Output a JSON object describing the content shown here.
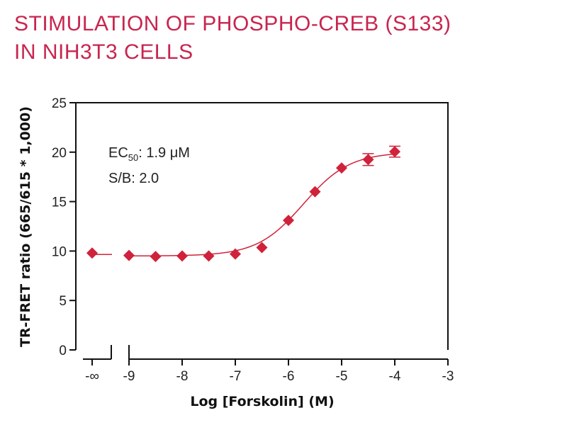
{
  "title_lines": [
    "STIMULATION OF PHOSPHO-CREB (S133)",
    "IN NIH3T3 CELLS"
  ],
  "colors": {
    "title": "#c8254f",
    "series": "#d0223a",
    "axis": "#111111"
  },
  "chart_data": {
    "type": "scatter",
    "title": "STIMULATION OF PHOSPHO-CREB (S133) IN NIH3T3 CELLS",
    "xlabel": "Log [Forskolin] (M)",
    "ylabel": "TR-FRET ratio (665/615 * 1,000)",
    "xlim": [
      -9,
      -3
    ],
    "ylim": [
      0,
      25
    ],
    "x_ticks": [
      {
        "value": "-inf",
        "label": "-∞"
      },
      {
        "value": -9,
        "label": "-9"
      },
      {
        "value": -8,
        "label": "-8"
      },
      {
        "value": -7,
        "label": "-7"
      },
      {
        "value": -6,
        "label": "-6"
      },
      {
        "value": -5,
        "label": "-5"
      },
      {
        "value": -4,
        "label": "-4"
      },
      {
        "value": -3,
        "label": "-3"
      }
    ],
    "y_ticks": [
      {
        "value": 0,
        "label": "0"
      },
      {
        "value": 5,
        "label": "5"
      },
      {
        "value": 10,
        "label": "10"
      },
      {
        "value": 15,
        "label": "15"
      },
      {
        "value": 20,
        "label": "20"
      },
      {
        "value": 25,
        "label": "25"
      }
    ],
    "baseline_point": {
      "x": "-inf",
      "y": 9.8
    },
    "points": [
      {
        "x": -9.0,
        "y": 9.55,
        "err": 0.1
      },
      {
        "x": -8.5,
        "y": 9.45,
        "err": 0.1
      },
      {
        "x": -8.0,
        "y": 9.5,
        "err": 0.1
      },
      {
        "x": -7.5,
        "y": 9.5,
        "err": 0.1
      },
      {
        "x": -7.0,
        "y": 9.7,
        "err": 0.1
      },
      {
        "x": -6.5,
        "y": 10.35,
        "err": 0.15
      },
      {
        "x": -6.0,
        "y": 13.1,
        "err": 0.2
      },
      {
        "x": -5.5,
        "y": 16.0,
        "err": 0.2
      },
      {
        "x": -5.0,
        "y": 18.4,
        "err": 0.2
      },
      {
        "x": -4.5,
        "y": 19.25,
        "err": 0.6
      },
      {
        "x": -4.0,
        "y": 20.05,
        "err": 0.55
      }
    ],
    "fit": {
      "model": "4PL",
      "bottom": 9.5,
      "top": 20.0,
      "log_ec50": -5.72,
      "hill": 1.0
    },
    "grid": false,
    "legend": "none",
    "annotations": {
      "ec50_prefix": "EC",
      "ec50_sub": "50",
      "ec50_value": ": 1.9 μM",
      "sb": "S/B: 2.0"
    }
  }
}
